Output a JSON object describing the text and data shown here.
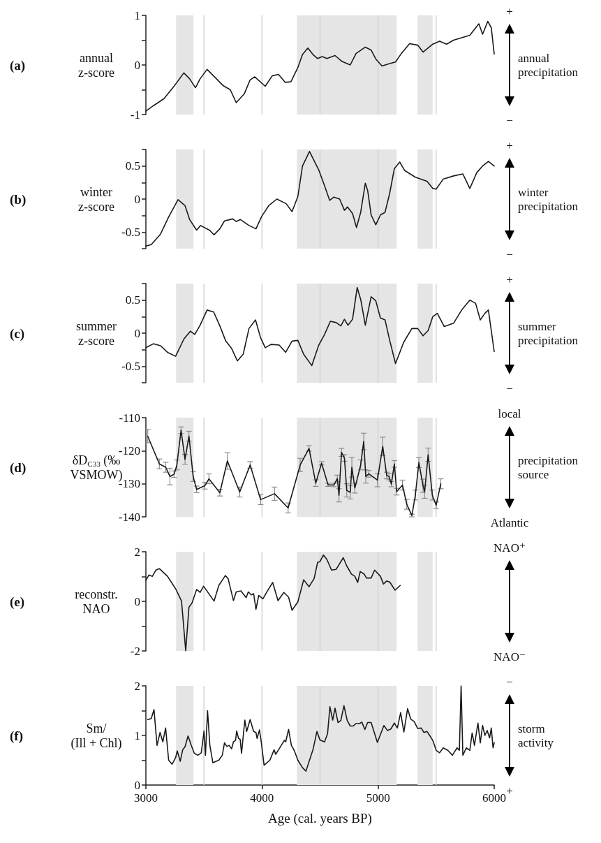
{
  "chart_data": [
    {
      "type": "line",
      "ylabel": "annual\nz-score",
      "annotations": [
        "(a)",
        "+",
        "annual\nprecipitation",
        "−"
      ],
      "xlim": [
        3000,
        6000
      ],
      "xticks": [
        3000,
        4000,
        5000,
        6000
      ],
      "tick_labels": "y",
      "ylim": [
        -1,
        1
      ],
      "yticks": [
        1,
        {
          "value": 0.5,
          "label": null
        },
        0,
        {
          "value": -0.5,
          "label": null
        },
        -1
      ],
      "bands": [
        {
          "axis": "x",
          "from": 3260,
          "to": 3410,
          "color": "#e5e5e5"
        },
        {
          "axis": "x",
          "from": 4300,
          "to": 5160,
          "color": "#e5e5e5"
        },
        {
          "axis": "x",
          "from": 5340,
          "to": 5470,
          "color": "#e5e5e5"
        }
      ],
      "ref_lines": [
        {
          "axis": "x",
          "value": 3500,
          "color": "#d4d4d4"
        },
        {
          "axis": "x",
          "value": 4000,
          "color": "#d4d4d4"
        },
        {
          "axis": "x",
          "value": 4500,
          "color": "#d4d4d4"
        },
        {
          "axis": "x",
          "value": 5000,
          "color": "#d4d4d4"
        },
        {
          "axis": "x",
          "value": 5500,
          "color": "#d4d4d4"
        }
      ],
      "x": [
        3000,
        3066,
        3156,
        3246,
        3327,
        3377,
        3427,
        3467,
        3527,
        3587,
        3667,
        3727,
        3778,
        3848,
        3898,
        3938,
        4028,
        4088,
        4142,
        4199,
        4249,
        4309,
        4349,
        4395,
        4439,
        4479,
        4519,
        4559,
        4629,
        4690,
        4760,
        4810,
        4890,
        4940,
        4980,
        5034,
        5090,
        5150,
        5200,
        5271,
        5341,
        5387,
        5471,
        5530,
        5590,
        5650,
        5720,
        5790,
        5868,
        5900,
        5945,
        5975,
        6000
      ],
      "series": [
        {
          "color": "#1a1a1a",
          "values": [
            -0.93,
            -0.82,
            -0.68,
            -0.42,
            -0.16,
            -0.28,
            -0.46,
            -0.28,
            -0.09,
            -0.23,
            -0.42,
            -0.5,
            -0.76,
            -0.58,
            -0.3,
            -0.24,
            -0.43,
            -0.22,
            -0.19,
            -0.35,
            -0.34,
            -0.05,
            0.21,
            0.34,
            0.21,
            0.13,
            0.17,
            0.13,
            0.19,
            0.07,
            0.0,
            0.23,
            0.36,
            0.3,
            0.12,
            -0.02,
            0.02,
            0.06,
            0.23,
            0.43,
            0.4,
            0.26,
            0.42,
            0.48,
            0.42,
            0.5,
            0.55,
            0.6,
            0.83,
            0.62,
            0.88,
            0.75,
            0.22
          ]
        }
      ]
    },
    {
      "type": "line",
      "ylabel": "winter\nz-score",
      "annotations": [
        "(b)",
        "+",
        "winter\nprecipitation",
        "−"
      ],
      "xlim": [
        3000,
        6000
      ],
      "xticks": [
        3000,
        4000,
        5000,
        6000
      ],
      "tick_labels": "y",
      "ylim": [
        -0.75,
        0.75
      ],
      "yticks": [
        {
          "value": 0.75,
          "label": null
        },
        0.5,
        {
          "value": 0.25,
          "label": null
        },
        0,
        {
          "value": -0.25,
          "label": null
        },
        -0.5,
        {
          "value": -0.75,
          "label": null
        }
      ],
      "bands": [
        {
          "axis": "x",
          "from": 3260,
          "to": 3410,
          "color": "#e5e5e5"
        },
        {
          "axis": "x",
          "from": 4300,
          "to": 5160,
          "color": "#e5e5e5"
        },
        {
          "axis": "x",
          "from": 5340,
          "to": 5470,
          "color": "#e5e5e5"
        }
      ],
      "ref_lines": [
        {
          "axis": "x",
          "value": 3500,
          "color": "#d4d4d4"
        },
        {
          "axis": "x",
          "value": 4000,
          "color": "#d4d4d4"
        },
        {
          "axis": "x",
          "value": 4500,
          "color": "#d4d4d4"
        },
        {
          "axis": "x",
          "value": 5000,
          "color": "#d4d4d4"
        },
        {
          "axis": "x",
          "value": 5500,
          "color": "#d4d4d4"
        }
      ],
      "x": [
        3000,
        3046,
        3126,
        3196,
        3277,
        3337,
        3377,
        3437,
        3471,
        3547,
        3587,
        3637,
        3677,
        3748,
        3778,
        3814,
        3888,
        3948,
        3998,
        4058,
        4128,
        4208,
        4259,
        4309,
        4349,
        4409,
        4489,
        4539,
        4583,
        4619,
        4669,
        4710,
        4736,
        4780,
        4814,
        4850,
        4890,
        4910,
        4940,
        4980,
        5020,
        5060,
        5100,
        5140,
        5186,
        5230,
        5321,
        5421,
        5471,
        5500,
        5560,
        5650,
        5730,
        5790,
        5850,
        5900,
        5950,
        6000
      ],
      "series": [
        {
          "color": "#1a1a1a",
          "values": [
            -0.71,
            -0.69,
            -0.53,
            -0.27,
            -0.01,
            -0.1,
            -0.31,
            -0.47,
            -0.4,
            -0.47,
            -0.54,
            -0.45,
            -0.33,
            -0.3,
            -0.34,
            -0.31,
            -0.4,
            -0.45,
            -0.26,
            -0.1,
            0.0,
            -0.07,
            -0.19,
            0.04,
            0.5,
            0.72,
            0.44,
            0.2,
            -0.02,
            0.03,
            0.0,
            -0.17,
            -0.12,
            -0.22,
            -0.43,
            -0.2,
            0.24,
            0.13,
            -0.24,
            -0.39,
            -0.24,
            -0.2,
            0.09,
            0.46,
            0.56,
            0.43,
            0.33,
            0.27,
            0.16,
            0.15,
            0.3,
            0.35,
            0.38,
            0.16,
            0.4,
            0.5,
            0.57,
            0.5
          ]
        }
      ]
    },
    {
      "type": "line",
      "ylabel": "summer\nz-score",
      "annotations": [
        "(c)",
        "+",
        "summer\nprecipitation",
        "−"
      ],
      "xlim": [
        3000,
        6000
      ],
      "xticks": [
        3000,
        4000,
        5000,
        6000
      ],
      "tick_labels": "y",
      "ylim": [
        -0.75,
        0.75
      ],
      "yticks": [
        {
          "value": 0.75,
          "label": null
        },
        0.5,
        {
          "value": 0.25,
          "label": null
        },
        0,
        {
          "value": -0.25,
          "label": null
        },
        -0.5,
        {
          "value": -0.75,
          "label": null
        }
      ],
      "bands": [
        {
          "axis": "x",
          "from": 3260,
          "to": 3410,
          "color": "#e5e5e5"
        },
        {
          "axis": "x",
          "from": 4300,
          "to": 5160,
          "color": "#e5e5e5"
        },
        {
          "axis": "x",
          "from": 5340,
          "to": 5470,
          "color": "#e5e5e5"
        }
      ],
      "ref_lines": [
        {
          "axis": "x",
          "value": 3500,
          "color": "#d4d4d4"
        },
        {
          "axis": "x",
          "value": 4000,
          "color": "#d4d4d4"
        },
        {
          "axis": "x",
          "value": 4500,
          "color": "#d4d4d4"
        },
        {
          "axis": "x",
          "value": 5000,
          "color": "#d4d4d4"
        },
        {
          "axis": "x",
          "value": 5500,
          "color": "#d4d4d4"
        }
      ],
      "x": [
        3000,
        3066,
        3126,
        3186,
        3256,
        3327,
        3383,
        3421,
        3467,
        3527,
        3584,
        3637,
        3688,
        3738,
        3788,
        3838,
        3888,
        3944,
        3988,
        4028,
        4078,
        4148,
        4204,
        4259,
        4309,
        4359,
        4429,
        4489,
        4539,
        4589,
        4639,
        4679,
        4710,
        4740,
        4780,
        4820,
        4850,
        4890,
        4940,
        4980,
        5020,
        5060,
        5100,
        5150,
        5220,
        5291,
        5341,
        5387,
        5431,
        5471,
        5510,
        5570,
        5650,
        5720,
        5790,
        5840,
        5880,
        5920,
        5950,
        6000
      ],
      "series": [
        {
          "color": "#1a1a1a",
          "values": [
            -0.22,
            -0.16,
            -0.19,
            -0.29,
            -0.35,
            -0.09,
            0.03,
            -0.02,
            0.12,
            0.35,
            0.32,
            0.11,
            -0.12,
            -0.23,
            -0.42,
            -0.32,
            0.07,
            0.2,
            -0.07,
            -0.22,
            -0.17,
            -0.18,
            -0.29,
            -0.12,
            -0.11,
            -0.32,
            -0.49,
            -0.18,
            -0.02,
            0.18,
            0.16,
            0.11,
            0.21,
            0.12,
            0.21,
            0.69,
            0.51,
            0.12,
            0.55,
            0.49,
            0.23,
            0.2,
            -0.11,
            -0.46,
            -0.14,
            0.07,
            0.07,
            -0.04,
            0.04,
            0.25,
            0.3,
            0.1,
            0.15,
            0.35,
            0.5,
            0.45,
            0.2,
            0.3,
            0.35,
            -0.28
          ]
        }
      ]
    },
    {
      "type": "line",
      "ylabel": "δD$_{C33}$ (‰\nVSMOW)",
      "annotations": [
        "(d)",
        "local",
        "precipitation\nsource",
        "Atlantic"
      ],
      "xlim": [
        3000,
        6000
      ],
      "xticks": [
        3000,
        4000,
        5000,
        6000
      ],
      "tick_labels": "y",
      "ylim": [
        -140,
        -110
      ],
      "yticks": [
        -110,
        -120,
        -130,
        -140
      ],
      "bands": [
        {
          "axis": "x",
          "from": 3260,
          "to": 3410,
          "color": "#e5e5e5"
        },
        {
          "axis": "x",
          "from": 4300,
          "to": 5160,
          "color": "#e5e5e5"
        },
        {
          "axis": "x",
          "from": 5340,
          "to": 5470,
          "color": "#e5e5e5"
        }
      ],
      "ref_lines": [
        {
          "axis": "x",
          "value": 3500,
          "color": "#d4d4d4"
        },
        {
          "axis": "x",
          "value": 4000,
          "color": "#d4d4d4"
        },
        {
          "axis": "x",
          "value": 4500,
          "color": "#d4d4d4"
        },
        {
          "axis": "x",
          "value": 5000,
          "color": "#d4d4d4"
        },
        {
          "axis": "x",
          "value": 5500,
          "color": "#d4d4d4"
        }
      ],
      "x": [
        3016,
        3116,
        3171,
        3207,
        3243,
        3267,
        3303,
        3337,
        3371,
        3407,
        3437,
        3507,
        3543,
        3637,
        3702,
        3808,
        3898,
        3988,
        4108,
        4225,
        4329,
        4405,
        4463,
        4513,
        4569,
        4619,
        4649,
        4663,
        4685,
        4710,
        4730,
        4760,
        4774,
        4800,
        4850,
        4876,
        4894,
        4920,
        4994,
        5040,
        5074,
        5094,
        5114,
        5140,
        5160,
        5210,
        5247,
        5291,
        5321,
        5351,
        5387,
        5401,
        5431,
        5467,
        5500,
        5540
      ],
      "series": [
        {
          "color": "#1a1a1a",
          "values": [
            -115.6,
            -124,
            -125,
            -127.8,
            -127.1,
            -124.3,
            -113.8,
            -122.6,
            -115.6,
            -127.8,
            -131.7,
            -130.6,
            -128.5,
            -132.7,
            -123.1,
            -132.5,
            -124.3,
            -134.8,
            -133,
            -137.3,
            -124.3,
            -119.3,
            -129.8,
            -123.8,
            -130.3,
            -130.4,
            -128.4,
            -133.5,
            -120.5,
            -122.2,
            -132,
            -132.6,
            -125,
            -131.3,
            -124.3,
            -117.2,
            -127.8,
            -127,
            -128.9,
            -118.7,
            -127.5,
            -127.8,
            -130.1,
            -124,
            -132.4,
            -130.4,
            -136.2,
            -139.6,
            -133.4,
            -123.6,
            -130.6,
            -132.4,
            -121.2,
            -133.4,
            -136.5,
            -130
          ],
          "errors": [
            2,
            1.5,
            1.5,
            2.5,
            1,
            1.5,
            1,
            1.5,
            1.5,
            1.5,
            1,
            1,
            1.5,
            1,
            2.5,
            1.5,
            1,
            1.5,
            2,
            1.5,
            2,
            0.8,
            1,
            0.5,
            0.5,
            0.5,
            1,
            2,
            1.2,
            1,
            2,
            2,
            3,
            1.5,
            1.5,
            2.5,
            2,
            1,
            2,
            2.8,
            1,
            1,
            0.8,
            1,
            1,
            1.5,
            1.5,
            0.4,
            1.5,
            1.5,
            2,
            2,
            2,
            1.5,
            1,
            1.5
          ]
        }
      ]
    },
    {
      "type": "line",
      "ylabel": "reconstr.\nNAO",
      "annotations": [
        "(e)",
        "NAO⁺",
        "NAO⁻"
      ],
      "xlim": [
        3000,
        6000
      ],
      "xticks": [
        3000,
        4000,
        5000,
        6000
      ],
      "tick_labels": "y",
      "ylim": [
        -2,
        2
      ],
      "yticks": [
        2,
        {
          "value": 1,
          "label": null
        },
        0,
        {
          "value": -1,
          "label": null
        },
        -2
      ],
      "bands": [
        {
          "axis": "x",
          "from": 3260,
          "to": 3410,
          "color": "#e5e5e5"
        },
        {
          "axis": "x",
          "from": 4300,
          "to": 5160,
          "color": "#e5e5e5"
        },
        {
          "axis": "x",
          "from": 5340,
          "to": 5470,
          "color": "#e5e5e5"
        }
      ],
      "ref_lines": [
        {
          "axis": "x",
          "value": 3500,
          "color": "#d4d4d4"
        },
        {
          "axis": "x",
          "value": 4000,
          "color": "#d4d4d4"
        },
        {
          "axis": "x",
          "value": 4500,
          "color": "#d4d4d4"
        },
        {
          "axis": "x",
          "value": 5000,
          "color": "#d4d4d4"
        },
        {
          "axis": "x",
          "value": 5500,
          "color": "#d4d4d4"
        }
      ],
      "x": [
        3000,
        3026,
        3056,
        3086,
        3116,
        3186,
        3257,
        3307,
        3343,
        3371,
        3397,
        3437,
        3467,
        3497,
        3587,
        3628,
        3684,
        3708,
        3754,
        3778,
        3818,
        3864,
        3882,
        3908,
        3928,
        3948,
        3972,
        4008,
        4044,
        4092,
        4138,
        4188,
        4229,
        4259,
        4309,
        4359,
        4405,
        4449,
        4479,
        4499,
        4529,
        4559,
        4599,
        4639,
        4700,
        4730,
        4770,
        4800,
        4824,
        4846,
        4880,
        4900,
        4940,
        4970,
        5020,
        5046,
        5074,
        5100,
        5146,
        5190
      ],
      "series": [
        {
          "color": "#1a1a1a",
          "values": [
            0.85,
            1.06,
            1.01,
            1.26,
            1.32,
            1.01,
            0.5,
            0.01,
            -2.0,
            -0.23,
            -0.07,
            0.48,
            0.36,
            0.61,
            0.01,
            0.64,
            1.04,
            0.92,
            0.03,
            0.38,
            0.42,
            0.15,
            0.38,
            0.26,
            0.31,
            -0.32,
            0.24,
            0.1,
            0.4,
            0.76,
            0.03,
            0.36,
            0.17,
            -0.36,
            -0.02,
            0.87,
            0.59,
            0.92,
            1.57,
            1.6,
            1.87,
            1.69,
            1.26,
            1.29,
            1.76,
            1.43,
            1.1,
            1.01,
            0.76,
            1.2,
            1.1,
            0.94,
            0.94,
            1.26,
            1.01,
            0.7,
            0.82,
            0.78,
            0.45,
            0.64
          ]
        }
      ]
    },
    {
      "type": "line",
      "ylabel": "Sm/\n(Ill + Chl)",
      "xlabel": "Age (cal. years BP)",
      "annotations": [
        "(f)",
        "−",
        "storm\nactivity",
        "+"
      ],
      "xlim": [
        3000,
        6000
      ],
      "xticks": [
        3000,
        4000,
        5000,
        6000
      ],
      "ylim": [
        0,
        2
      ],
      "yticks": [
        2,
        {
          "value": 1.5,
          "label": null
        },
        1,
        {
          "value": 0.5,
          "label": null
        },
        0
      ],
      "bands": [
        {
          "axis": "x",
          "from": 3260,
          "to": 3410,
          "color": "#e5e5e5"
        },
        {
          "axis": "x",
          "from": 4300,
          "to": 5160,
          "color": "#e5e5e5"
        },
        {
          "axis": "x",
          "from": 5340,
          "to": 5470,
          "color": "#e5e5e5"
        }
      ],
      "ref_lines": [
        {
          "axis": "x",
          "value": 3500,
          "color": "#d4d4d4"
        },
        {
          "axis": "x",
          "value": 4000,
          "color": "#d4d4d4"
        },
        {
          "axis": "x",
          "value": 4500,
          "color": "#d4d4d4"
        },
        {
          "axis": "x",
          "value": 5000,
          "color": "#d4d4d4"
        },
        {
          "axis": "x",
          "value": 5500,
          "color": "#d4d4d4"
        }
      ],
      "x": [
        3016,
        3046,
        3070,
        3096,
        3122,
        3146,
        3170,
        3196,
        3226,
        3256,
        3270,
        3296,
        3317,
        3337,
        3363,
        3391,
        3417,
        3447,
        3477,
        3501,
        3513,
        3531,
        3551,
        3577,
        3628,
        3658,
        3677,
        3698,
        3718,
        3738,
        3754,
        3772,
        3782,
        3798,
        3812,
        3824,
        3852,
        3868,
        3898,
        3928,
        3948,
        3958,
        3978,
        3992,
        4018,
        4068,
        4104,
        4118,
        4148,
        4192,
        4204,
        4229,
        4253,
        4279,
        4309,
        4349,
        4379,
        4409,
        4439,
        4473,
        4499,
        4539,
        4565,
        4585,
        4609,
        4629,
        4655,
        4679,
        4706,
        4734,
        4760,
        4786,
        4810,
        4840,
        4860,
        4886,
        4910,
        4940,
        4994,
        5050,
        5080,
        5110,
        5140,
        5166,
        5194,
        5222,
        5254,
        5281,
        5311,
        5341,
        5371,
        5395,
        5421,
        5441,
        5471,
        5500,
        5530,
        5560,
        5600,
        5640,
        5680,
        5700,
        5715,
        5730,
        5760,
        5790,
        5810,
        5830,
        5860,
        5880,
        5900,
        5920,
        5940,
        5960,
        5975,
        5990,
        6000
      ],
      "series": [
        {
          "color": "#1a1a1a",
          "values": [
            1.32,
            1.34,
            1.52,
            0.8,
            1.06,
            0.87,
            1.15,
            0.5,
            0.42,
            0.55,
            0.69,
            0.48,
            0.71,
            0.77,
            0.99,
            0.8,
            0.64,
            0.6,
            0.65,
            1.09,
            0.6,
            1.5,
            0.8,
            0.45,
            0.5,
            0.6,
            0.85,
            0.78,
            0.8,
            0.73,
            0.87,
            0.9,
            1.09,
            0.94,
            0.92,
            0.64,
            1.31,
            1.08,
            1.32,
            1.08,
            1.06,
            0.94,
            1.11,
            0.9,
            0.4,
            0.5,
            0.71,
            0.62,
            0.73,
            0.9,
            0.87,
            1.12,
            0.8,
            0.69,
            0.5,
            0.35,
            0.28,
            0.5,
            0.71,
            1.08,
            0.91,
            0.87,
            1.04,
            1.58,
            1.31,
            1.55,
            1.26,
            1.3,
            1.6,
            1.3,
            1.19,
            1.19,
            1.24,
            1.24,
            1.27,
            1.12,
            1.26,
            1.26,
            0.86,
            1.2,
            1.1,
            1.13,
            1.25,
            1.15,
            1.46,
            1.07,
            1.54,
            1.33,
            1.28,
            1.14,
            1.15,
            1.06,
            1.08,
            1.01,
            0.9,
            0.7,
            0.65,
            0.75,
            0.7,
            0.6,
            0.75,
            0.7,
            2.0,
            0.6,
            0.75,
            0.7,
            1.05,
            0.8,
            1.25,
            0.85,
            1.2,
            1.0,
            1.1,
            0.95,
            1.15,
            0.75,
            0.85
          ]
        }
      ]
    }
  ]
}
